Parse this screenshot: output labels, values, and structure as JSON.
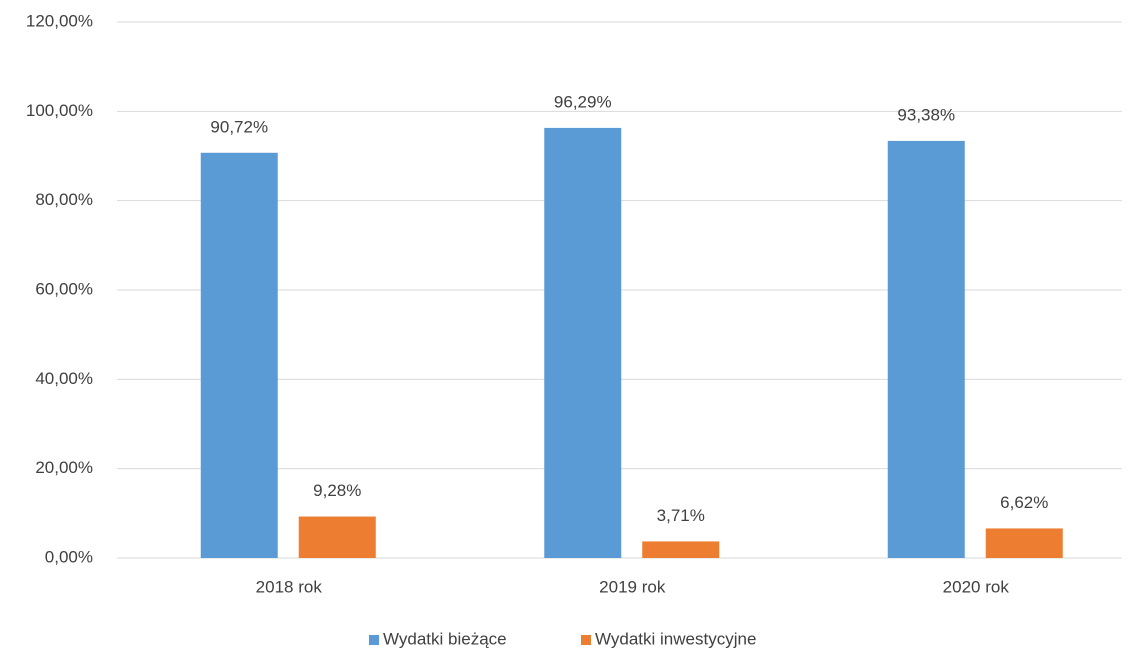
{
  "chart_data": {
    "type": "bar",
    "categories": [
      "2018 rok",
      "2019 rok",
      "2020 rok"
    ],
    "series": [
      {
        "name": "Wydatki bieżące",
        "color": "#5b9bd5",
        "values": [
          90.72,
          96.29,
          93.38
        ],
        "value_labels": [
          "90,72%",
          "96,29%",
          "93,38%"
        ]
      },
      {
        "name": "Wydatki inwestycyjne",
        "color": "#ed7d31",
        "values": [
          9.28,
          3.71,
          6.62
        ],
        "value_labels": [
          "9,28%",
          "3,71%",
          "6,62%"
        ]
      }
    ],
    "ylim": [
      0,
      120
    ],
    "yticks": [
      {
        "value": 0,
        "label": "0,00%"
      },
      {
        "value": 20,
        "label": "20,00%"
      },
      {
        "value": 40,
        "label": "40,00%"
      },
      {
        "value": 60,
        "label": "60,00%"
      },
      {
        "value": 80,
        "label": "80,00%"
      },
      {
        "value": 100,
        "label": "100,00%"
      },
      {
        "value": 120,
        "label": "120,00%"
      }
    ],
    "grid": true,
    "legend": "bottom"
  }
}
